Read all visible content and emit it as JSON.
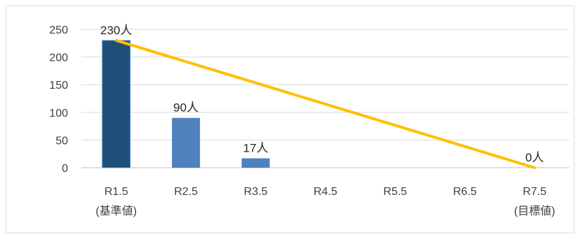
{
  "chart_data": {
    "type": "bar",
    "categories": [
      "R1.5",
      "R2.5",
      "R3.5",
      "R4.5",
      "R5.5",
      "R6.5",
      "R7.5"
    ],
    "category_sublabels": [
      "(基準値)",
      "",
      "",
      "",
      "",
      "",
      "(目標値)"
    ],
    "values": [
      230,
      90,
      17,
      null,
      null,
      null,
      null
    ],
    "data_labels": [
      "230人",
      "90人",
      "17人",
      "",
      "",
      "",
      "0人"
    ],
    "target_line": {
      "from": {
        "category": "R1.5",
        "value": 230
      },
      "to": {
        "category": "R7.5",
        "value": 0
      }
    },
    "ylim": [
      0,
      250
    ],
    "yticks": [
      0,
      50,
      100,
      150,
      200,
      250
    ],
    "title": "",
    "xlabel": "",
    "ylabel": "",
    "grid": true,
    "legend": "none",
    "colors": {
      "baseline_bar": "#1f4e79",
      "bar": "#4f81bd",
      "target_line": "#ffc000",
      "grid": "#d9d9d9",
      "text": "#404040"
    }
  }
}
